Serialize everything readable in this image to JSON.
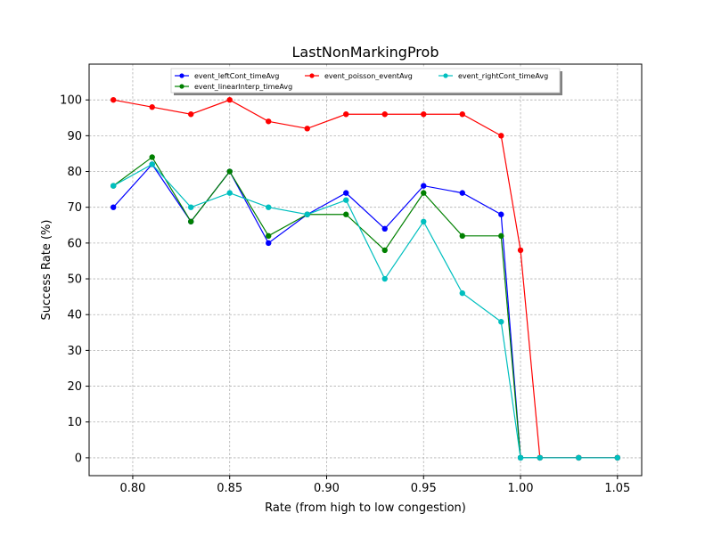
{
  "chart_data": {
    "type": "line",
    "title": "LastNonMarkingProb",
    "xlabel": "Rate (from high to low congestion)",
    "ylabel": "Success Rate (%)",
    "xlim": [
      0.7775,
      1.0625
    ],
    "ylim": [
      -5,
      110
    ],
    "xticks": [
      0.8,
      0.85,
      0.9,
      0.95,
      1.0,
      1.05
    ],
    "xtick_labels": [
      "0.80",
      "0.85",
      "0.90",
      "0.95",
      "1.00",
      "1.05"
    ],
    "yticks": [
      0,
      10,
      20,
      30,
      40,
      50,
      60,
      70,
      80,
      90,
      100
    ],
    "ytick_labels": [
      "0",
      "10",
      "20",
      "30",
      "40",
      "50",
      "60",
      "70",
      "80",
      "90",
      "100"
    ],
    "grid": true,
    "legend_position": "top-center",
    "series": [
      {
        "name": "event_leftCont_timeAvg",
        "color": "#0000ff",
        "x": [
          0.79,
          0.81,
          0.83,
          0.85,
          0.87,
          0.89,
          0.91,
          0.93,
          0.95,
          0.97,
          0.99,
          1.0,
          1.01,
          1.03,
          1.05
        ],
        "y": [
          70,
          82,
          66,
          80,
          60,
          68,
          74,
          64,
          76,
          74,
          68,
          0,
          0,
          0,
          0
        ]
      },
      {
        "name": "event_linearInterp_timeAvg",
        "color": "#008000",
        "x": [
          0.79,
          0.81,
          0.83,
          0.85,
          0.87,
          0.89,
          0.91,
          0.93,
          0.95,
          0.97,
          0.99,
          1.0,
          1.01,
          1.03,
          1.05
        ],
        "y": [
          76,
          84,
          66,
          80,
          62,
          68,
          68,
          58,
          74,
          62,
          62,
          0,
          0,
          0,
          0
        ]
      },
      {
        "name": "event_poisson_eventAvg",
        "color": "#ff0000",
        "x": [
          0.79,
          0.81,
          0.83,
          0.85,
          0.87,
          0.89,
          0.91,
          0.93,
          0.95,
          0.97,
          0.99,
          1.0,
          1.01,
          1.03,
          1.05
        ],
        "y": [
          100,
          98,
          96,
          100,
          94,
          92,
          96,
          96,
          96,
          96,
          90,
          58,
          0,
          0,
          0
        ]
      },
      {
        "name": "event_rightCont_timeAvg",
        "color": "#00bfbf",
        "x": [
          0.79,
          0.81,
          0.83,
          0.85,
          0.87,
          0.89,
          0.91,
          0.93,
          0.95,
          0.97,
          0.99,
          1.0,
          1.01,
          1.03,
          1.05
        ],
        "y": [
          76,
          82,
          70,
          74,
          70,
          68,
          72,
          50,
          66,
          46,
          38,
          0,
          0,
          0,
          0
        ]
      }
    ]
  }
}
